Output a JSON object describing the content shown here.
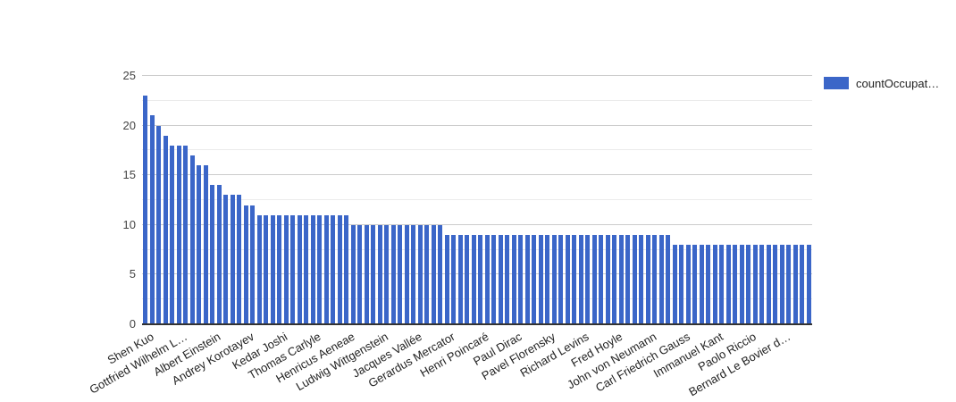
{
  "legend": {
    "label": "countOccupat…",
    "position": "right"
  },
  "colors": {
    "bar": "#3b66c8",
    "grid_major": "#cccccc",
    "grid_minor": "#ebebeb",
    "axis_line": "#333333",
    "y_tick_text": "#444444",
    "x_tick_text": "#222222",
    "background": "#ffffff"
  },
  "chart_data": {
    "type": "bar",
    "title": "",
    "xlabel": "",
    "ylabel": "",
    "legend_position": "right",
    "grid": true,
    "ylim": [
      0,
      25
    ],
    "yticks": [
      0,
      5,
      10,
      15,
      20,
      25
    ],
    "minor_grid_start": 2.5,
    "minor_grid_step": 5,
    "n_bars": 100,
    "x_label_every": 5,
    "x_label_rotation_deg": -30,
    "series": [
      {
        "name": "countOccupat…",
        "color": "#3b66c8"
      }
    ],
    "values": [
      23,
      21,
      20,
      19,
      18,
      18,
      18,
      17,
      16,
      16,
      14,
      14,
      13,
      13,
      13,
      12,
      12,
      11,
      11,
      11,
      11,
      11,
      11,
      11,
      11,
      11,
      11,
      11,
      11,
      11,
      11,
      10,
      10,
      10,
      10,
      10,
      10,
      10,
      10,
      10,
      10,
      10,
      10,
      10,
      10,
      9,
      9,
      9,
      9,
      9,
      9,
      9,
      9,
      9,
      9,
      9,
      9,
      9,
      9,
      9,
      9,
      9,
      9,
      9,
      9,
      9,
      9,
      9,
      9,
      9,
      9,
      9,
      9,
      9,
      9,
      9,
      9,
      9,
      9,
      8,
      8,
      8,
      8,
      8,
      8,
      8,
      8,
      8,
      8,
      8,
      8,
      8,
      8,
      8,
      8,
      8,
      8,
      8,
      8,
      8
    ],
    "x_tick_labels": [
      {
        "bar_index": 1,
        "label": "Shen Kuo"
      },
      {
        "bar_index": 6,
        "label": "Gottfried Wilhelm L…"
      },
      {
        "bar_index": 11,
        "label": "Albert Einstein"
      },
      {
        "bar_index": 16,
        "label": "Andrey Korotayev"
      },
      {
        "bar_index": 21,
        "label": "Kedar Joshi"
      },
      {
        "bar_index": 26,
        "label": "Thomas Carlyle"
      },
      {
        "bar_index": 31,
        "label": "Henricus Aeneae"
      },
      {
        "bar_index": 36,
        "label": "Ludwig Wittgenstein"
      },
      {
        "bar_index": 41,
        "label": "Jacques Vallée"
      },
      {
        "bar_index": 46,
        "label": "Gerardus Mercator"
      },
      {
        "bar_index": 51,
        "label": "Henri Poincaré"
      },
      {
        "bar_index": 56,
        "label": "Paul Dirac"
      },
      {
        "bar_index": 61,
        "label": "Pavel Florensky"
      },
      {
        "bar_index": 66,
        "label": "Richard Levins"
      },
      {
        "bar_index": 71,
        "label": "Fred Hoyle"
      },
      {
        "bar_index": 76,
        "label": "John von Neumann"
      },
      {
        "bar_index": 81,
        "label": "Carl Friedrich Gauss"
      },
      {
        "bar_index": 86,
        "label": "Immanuel Kant"
      },
      {
        "bar_index": 91,
        "label": "Paolo Riccio"
      },
      {
        "bar_index": 96,
        "label": "Bernard Le Bovier d…"
      }
    ]
  }
}
